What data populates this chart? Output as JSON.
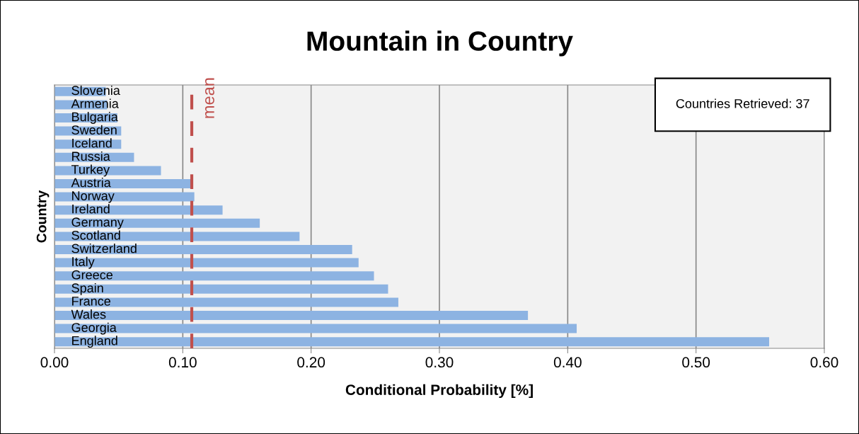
{
  "chart_data": {
    "type": "bar",
    "orientation": "horizontal",
    "title": "Mountain in Country",
    "xlabel": "Conditional Probability [%]",
    "ylabel": "Country",
    "categories": [
      "Slovenia",
      "Armenia",
      "Bulgaria",
      "Sweden",
      "Iceland",
      "Russia",
      "Turkey",
      "Austria",
      "Norway",
      "Ireland",
      "Germany",
      "Scotland",
      "Switzerland",
      "Italy",
      "Greece",
      "Spain",
      "France",
      "Wales",
      "Georgia",
      "England"
    ],
    "values": [
      0.04,
      0.041,
      0.049,
      0.052,
      0.052,
      0.062,
      0.083,
      0.106,
      0.109,
      0.131,
      0.16,
      0.191,
      0.232,
      0.237,
      0.249,
      0.26,
      0.268,
      0.369,
      0.407,
      0.557
    ],
    "color": "#8db3e2",
    "xlim": [
      0,
      0.6
    ],
    "xticks": [
      {
        "value": 0,
        "label": "0.00"
      },
      {
        "value": 0.1,
        "label": "0.10"
      },
      {
        "value": 0.2,
        "label": "0.20"
      },
      {
        "value": 0.3,
        "label": "0.30"
      },
      {
        "value": 0.4,
        "label": "0.40"
      },
      {
        "value": 0.5,
        "label": "0.50"
      },
      {
        "value": 0.6,
        "label": "0.60"
      }
    ],
    "grid": "x",
    "legend": false,
    "ref_lines": [
      {
        "axis": "x",
        "value": 0.107,
        "label": "mean",
        "color": "#c0504d",
        "line_style": "dashed"
      }
    ],
    "annotations": [
      "Countries Retrieved: 37"
    ]
  }
}
